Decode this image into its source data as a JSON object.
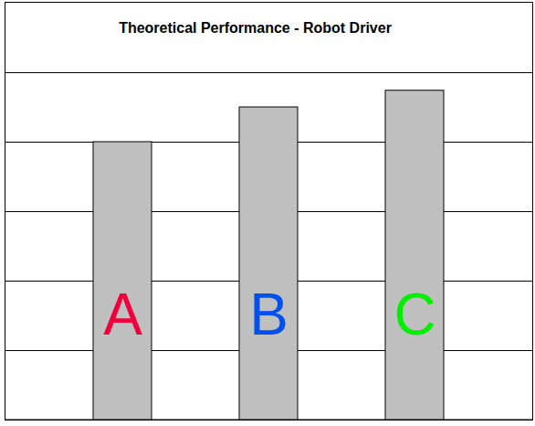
{
  "chart_data": {
    "type": "bar",
    "title": "Theoretical Performance - Robot Driver",
    "categories": [
      "A",
      "B",
      "C"
    ],
    "values": [
      4,
      4.5,
      4.74
    ],
    "color": "#c0c0c0",
    "ylim": [
      0,
      5
    ],
    "yticks": [
      0,
      1,
      2,
      3,
      4,
      5
    ],
    "grid": true,
    "tick_labels": false
  }
}
